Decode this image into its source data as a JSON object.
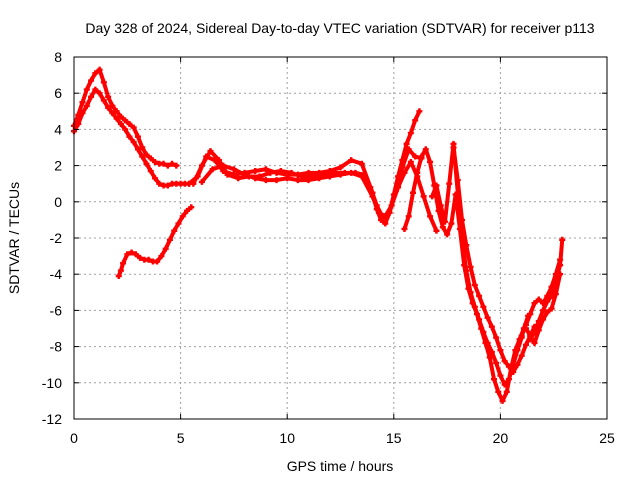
{
  "chart_data": {
    "type": "scatter",
    "title": "Day 328 of 2024, Sidereal Day-to-day VTEC variation (SDTVAR) for receiver p113",
    "xlabel": "GPS time / hours",
    "ylabel": "SDTVAR / TECUs",
    "xlim": [
      0,
      25
    ],
    "ylim": [
      -12,
      8
    ],
    "xticks": [
      0,
      5,
      10,
      15,
      20,
      25
    ],
    "yticks": [
      -12,
      -10,
      -8,
      -6,
      -4,
      -2,
      0,
      2,
      4,
      6,
      8
    ],
    "grid": true,
    "legend": "none",
    "marker": "+",
    "color": "#ff0000",
    "series": [
      {
        "x": [
          0.0,
          0.2,
          0.4,
          0.6,
          0.8,
          1.0,
          1.2,
          1.4,
          1.6,
          1.8,
          2.0,
          2.2,
          2.4,
          2.6,
          2.8,
          3.0,
          3.2,
          3.4,
          3.6,
          3.8,
          4.0,
          4.2,
          4.4,
          4.6,
          4.8
        ],
        "values": [
          4.2,
          4.8,
          5.5,
          6.2,
          6.7,
          7.1,
          7.3,
          6.6,
          5.8,
          5.3,
          5.0,
          4.7,
          4.5,
          4.3,
          4.1,
          3.6,
          3.0,
          2.6,
          2.4,
          2.2,
          2.1,
          2.1,
          2.0,
          2.1,
          2.0
        ]
      },
      {
        "x": [
          0.0,
          0.2,
          0.4,
          0.6,
          0.8,
          1.0,
          1.2,
          1.4,
          1.6,
          1.8,
          2.0,
          2.2,
          2.4,
          2.6,
          2.8,
          3.0,
          3.2,
          3.4,
          3.6,
          3.8,
          4.0,
          4.2,
          4.4,
          4.6,
          4.8,
          5.0,
          5.2,
          5.4
        ],
        "values": [
          3.9,
          4.3,
          4.9,
          5.3,
          5.8,
          6.2,
          6.0,
          5.6,
          5.2,
          4.9,
          4.6,
          4.3,
          4.0,
          3.6,
          3.3,
          2.9,
          2.5,
          2.1,
          1.7,
          1.3,
          1.0,
          0.9,
          0.9,
          1.0,
          1.0,
          1.0,
          1.0,
          1.0
        ]
      },
      {
        "x": [
          2.1,
          2.2,
          2.3,
          2.5,
          2.7,
          2.9,
          3.1,
          3.3,
          3.5,
          3.7,
          3.9,
          4.1,
          4.3,
          4.5,
          4.7,
          4.9,
          5.1,
          5.3,
          5.5
        ],
        "values": [
          -4.1,
          -3.8,
          -3.4,
          -2.9,
          -2.8,
          -2.9,
          -3.1,
          -3.2,
          -3.2,
          -3.3,
          -3.3,
          -3.0,
          -2.6,
          -2.1,
          -1.6,
          -1.2,
          -0.8,
          -0.5,
          -0.3
        ]
      },
      {
        "x": [
          5.4,
          5.8,
          6.2,
          6.6,
          7.0,
          7.5,
          8.0,
          8.5,
          9.0,
          9.5,
          10.0,
          10.5,
          11.0,
          11.5,
          12.0,
          12.5,
          13.0,
          13.5,
          14.0,
          14.2,
          14.4,
          14.6,
          14.8,
          15.0,
          15.2,
          15.4,
          15.6,
          15.8,
          16.0,
          16.2
        ],
        "values": [
          1.0,
          1.4,
          2.5,
          2.3,
          1.7,
          1.5,
          1.6,
          1.7,
          1.8,
          1.6,
          1.5,
          1.5,
          1.6,
          1.6,
          1.7,
          1.9,
          2.3,
          2.1,
          0.5,
          -0.4,
          -1.0,
          -1.2,
          -0.6,
          0.4,
          1.4,
          2.3,
          3.2,
          3.8,
          4.5,
          5.0
        ]
      },
      {
        "x": [
          5.6,
          6.0,
          6.4,
          6.8,
          7.2,
          7.7,
          8.2,
          8.7,
          9.2,
          9.7,
          10.2,
          10.7,
          11.2,
          11.7,
          12.2,
          12.7,
          13.2,
          13.6,
          13.9,
          14.2,
          14.5,
          14.8,
          15.1,
          15.4,
          15.7,
          16.0,
          16.3
        ],
        "values": [
          1.0,
          2.0,
          2.8,
          2.3,
          1.5,
          1.3,
          1.4,
          1.4,
          1.6,
          1.7,
          1.6,
          1.4,
          1.4,
          1.5,
          1.6,
          1.6,
          1.6,
          1.5,
          0.8,
          -0.2,
          -0.9,
          -0.6,
          0.6,
          1.9,
          2.9,
          2.5,
          2.4
        ]
      },
      {
        "x": [
          6.0,
          6.5,
          7.0,
          7.5,
          8.0,
          8.5,
          9.0,
          9.5,
          10.0,
          10.5,
          11.0,
          11.5,
          12.0,
          12.5,
          13.0,
          13.5,
          14.0,
          14.3,
          14.6,
          14.9,
          15.2,
          15.5,
          15.8,
          16.1,
          16.4,
          16.7,
          17.0
        ],
        "values": [
          1.1,
          1.8,
          2.0,
          1.8,
          1.5,
          1.3,
          1.2,
          1.2,
          1.3,
          1.2,
          1.2,
          1.3,
          1.4,
          1.5,
          1.6,
          1.4,
          0.3,
          -0.6,
          -0.8,
          -0.2,
          0.8,
          1.6,
          2.2,
          1.4,
          0.3,
          -0.8,
          -1.6
        ]
      },
      {
        "x": [
          15.5,
          15.7,
          15.9,
          16.1,
          16.3,
          16.5,
          16.7,
          16.9,
          17.1,
          17.3,
          17.5,
          17.7,
          17.9,
          18.1,
          18.3,
          18.5,
          18.7,
          18.9,
          19.1,
          19.3,
          19.5,
          19.7,
          19.9,
          20.1,
          20.3,
          20.5,
          20.7,
          20.9,
          21.1,
          21.3
        ],
        "values": [
          -1.5,
          -0.8,
          0.5,
          1.6,
          2.5,
          2.9,
          2.2,
          0.9,
          -0.5,
          -1.4,
          -1.8,
          -1.2,
          0.4,
          -1.5,
          -3.5,
          -4.8,
          -5.6,
          -6.2,
          -7.0,
          -7.8,
          -8.6,
          -9.8,
          -10.5,
          -11.0,
          -10.5,
          -9.2,
          -8.2,
          -7.6,
          -7.0,
          -6.3
        ]
      },
      {
        "x": [
          16.8,
          17.0,
          17.2,
          17.4,
          17.6,
          17.8,
          18.0,
          18.2,
          18.4,
          18.6,
          18.8,
          19.0,
          19.2,
          19.4,
          19.6,
          19.8,
          20.0,
          20.2,
          20.4,
          20.6,
          20.8,
          21.0
        ],
        "values": [
          0.3,
          0.9,
          -0.2,
          -1.1,
          1.0,
          3.2,
          0.5,
          -2.0,
          -3.8,
          -5.0,
          -5.8,
          -6.5,
          -7.2,
          -7.8,
          -8.3,
          -8.9,
          -9.6,
          -10.1,
          -9.8,
          -9.0,
          -8.2,
          -7.5
        ]
      },
      {
        "x": [
          17.8,
          18.0,
          18.2,
          18.4,
          18.6,
          18.8,
          19.0,
          19.2,
          19.4,
          19.6,
          19.8,
          20.0,
          20.2,
          20.4,
          20.6,
          20.8,
          21.0,
          21.2,
          21.4,
          21.6
        ],
        "values": [
          3.0,
          1.2,
          -1.0,
          -2.4,
          -3.6,
          -4.6,
          -5.2,
          -5.8,
          -6.4,
          -6.9,
          -7.5,
          -8.2,
          -8.8,
          -9.1,
          -9.4,
          -9.0,
          -8.5,
          -7.9,
          -7.4,
          -6.9
        ]
      },
      {
        "x": [
          21.0,
          21.2,
          21.4,
          21.6,
          21.8,
          22.0,
          22.2,
          22.4,
          22.6,
          22.8
        ],
        "values": [
          -7.4,
          -6.8,
          -6.2,
          -5.6,
          -5.4,
          -5.6,
          -5.2,
          -4.7,
          -4.0,
          -3.2
        ]
      },
      {
        "x": [
          21.4,
          21.6,
          21.8,
          22.0,
          22.2,
          22.4,
          22.6,
          22.8,
          22.9
        ],
        "values": [
          -7.6,
          -7.2,
          -6.6,
          -6.0,
          -5.5,
          -5.2,
          -4.4,
          -3.5,
          -2.1
        ]
      },
      {
        "x": [
          21.2,
          21.4,
          21.6,
          21.8,
          22.0,
          22.2,
          22.4,
          22.6,
          22.8
        ],
        "values": [
          -7.0,
          -7.4,
          -7.8,
          -7.1,
          -6.5,
          -6.1,
          -5.9,
          -5.1,
          -4.0
        ]
      }
    ]
  }
}
